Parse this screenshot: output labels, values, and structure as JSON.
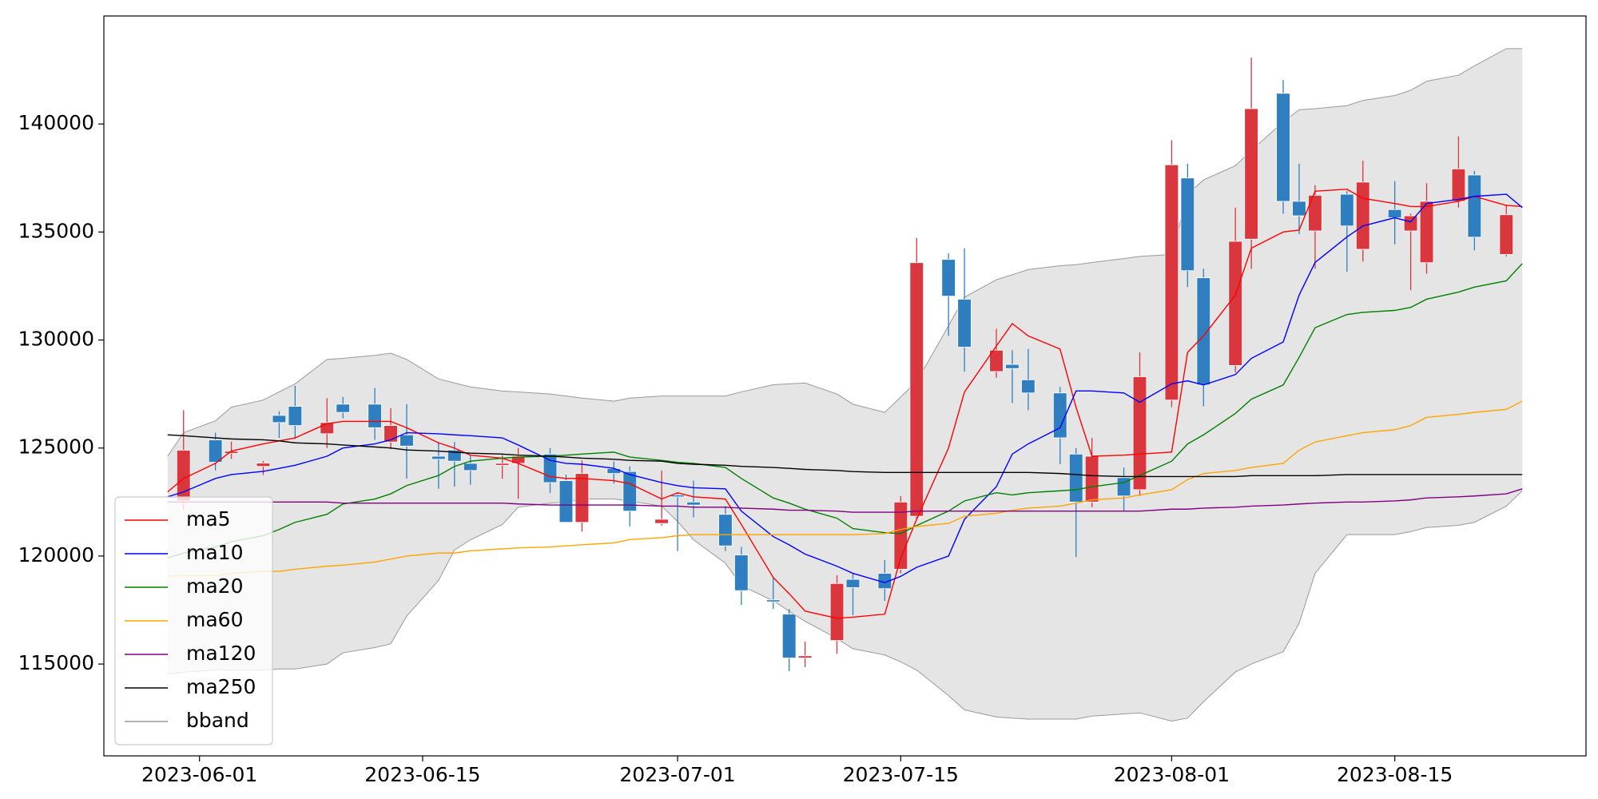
{
  "chart_data": {
    "type": "candlestick",
    "x": [
      "2023-05-30",
      "2023-05-31",
      "2023-06-02",
      "2023-06-03",
      "2023-06-05",
      "2023-06-06",
      "2023-06-07",
      "2023-06-09",
      "2023-06-10",
      "2023-06-12",
      "2023-06-13",
      "2023-06-14",
      "2023-06-16",
      "2023-06-17",
      "2023-06-18",
      "2023-06-20",
      "2023-06-21",
      "2023-06-23",
      "2023-06-24",
      "2023-06-25",
      "2023-06-27",
      "2023-06-28",
      "2023-06-30",
      "2023-07-01",
      "2023-07-02",
      "2023-07-04",
      "2023-07-05",
      "2023-07-07",
      "2023-07-08",
      "2023-07-09",
      "2023-07-11",
      "2023-07-12",
      "2023-07-14",
      "2023-07-15",
      "2023-07-16",
      "2023-07-18",
      "2023-07-19",
      "2023-07-21",
      "2023-07-22",
      "2023-07-23",
      "2023-07-25",
      "2023-07-26",
      "2023-07-27",
      "2023-07-29",
      "2023-07-30",
      "2023-08-01",
      "2023-08-02",
      "2023-08-03",
      "2023-08-05",
      "2023-08-06",
      "2023-08-08",
      "2023-08-09",
      "2023-08-10",
      "2023-08-12",
      "2023-08-13",
      "2023-08-15",
      "2023-08-16",
      "2023-08-17",
      "2023-08-19",
      "2023-08-20",
      "2023-08-22",
      "2023-08-23"
    ],
    "open": [
      null,
      122550,
      125380,
      124750,
      124150,
      126510,
      126930,
      125660,
      127030,
      127030,
      125280,
      125610,
      124620,
      124910,
      124290,
      124200,
      124290,
      124720,
      123490,
      121560,
      124050,
      123910,
      121510,
      122830,
      122500,
      121930,
      120050,
      117970,
      117310,
      115280,
      116090,
      118920,
      119200,
      119390,
      121840,
      133730,
      131890,
      128540,
      128870,
      128160,
      127550,
      124720,
      122500,
      123630,
      123070,
      127220,
      137500,
      132880,
      128820,
      134670,
      141420,
      136420,
      135050,
      136750,
      134200,
      136040,
      135050,
      133580,
      136420,
      137640,
      133960,
      null
    ],
    "high": [
      null,
      126750,
      125710,
      125300,
      124400,
      126700,
      127880,
      127310,
      127360,
      127780,
      126840,
      127030,
      125280,
      125280,
      124670,
      124670,
      125000,
      125000,
      123770,
      124430,
      124380,
      124150,
      123960,
      122920,
      123490,
      122310,
      120420,
      119010,
      117550,
      116040,
      119110,
      119200,
      119810,
      122780,
      134720,
      134010,
      134250,
      130520,
      129530,
      129580,
      127830,
      125000,
      125470,
      124100,
      129430,
      139250,
      138160,
      133300,
      136130,
      143070,
      142030,
      138160,
      137170,
      136890,
      138300,
      137360,
      135850,
      137260,
      139430,
      137830,
      136270,
      null
    ],
    "low": [
      null,
      122170,
      123960,
      124500,
      123750,
      125470,
      125420,
      125000,
      126370,
      125380,
      124950,
      123580,
      123110,
      123210,
      123300,
      123580,
      122640,
      122920,
      121560,
      121130,
      123350,
      121370,
      121410,
      120230,
      121790,
      120230,
      117740,
      117550,
      114670,
      114860,
      115470,
      117260,
      117920,
      119200,
      121700,
      130190,
      128540,
      128250,
      127080,
      126750,
      124250,
      119950,
      122260,
      122080,
      122780,
      126890,
      132450,
      126930,
      128490,
      133300,
      135850,
      134900,
      133300,
      133160,
      133630,
      134430,
      132310,
      133070,
      136130,
      134150,
      133870,
      null
    ],
    "close": [
      null,
      124900,
      124340,
      124850,
      124300,
      126180,
      126040,
      126180,
      126650,
      125940,
      126040,
      125090,
      124480,
      124390,
      123960,
      124290,
      124620,
      123400,
      121560,
      123820,
      123820,
      122080,
      121700,
      122740,
      122360,
      120470,
      118400,
      117880,
      115280,
      115380,
      118730,
      118540,
      118490,
      122500,
      133580,
      132030,
      129670,
      129530,
      128680,
      127550,
      125470,
      122500,
      124620,
      122780,
      128300,
      138110,
      133210,
      127920,
      134570,
      140710,
      136420,
      135750,
      136700,
      135280,
      137310,
      135660,
      135750,
      136420,
      137920,
      134760,
      135800,
      null
    ],
    "up_color": "#d9363e",
    "down_color": "#2f7fc0",
    "series": [
      {
        "name": "ma5",
        "color": "#ff0000",
        "values": [
          122970,
          123590,
          124290,
          124860,
          125190,
          125330,
          125470,
          126130,
          126230,
          126230,
          126230,
          125940,
          125240,
          125000,
          124670,
          124530,
          124290,
          123680,
          123590,
          123590,
          123490,
          123350,
          122640,
          122930,
          122740,
          122640,
          121460,
          119010,
          118260,
          117450,
          117120,
          117170,
          117310,
          119910,
          121700,
          125000,
          127590,
          129720,
          130760,
          130190,
          129580,
          126890,
          124620,
          124670,
          124720,
          124810,
          129430,
          130190,
          132080,
          134250,
          135000,
          135090,
          136890,
          136980,
          136560,
          136320,
          136180,
          136180,
          136420,
          136650,
          136230,
          136180
        ]
      },
      {
        "name": "ma10",
        "color": "#0000ff",
        "values": [
          122740,
          122970,
          123590,
          123770,
          123920,
          124060,
          124200,
          124620,
          125000,
          125190,
          125380,
          125710,
          125660,
          125610,
          125570,
          125470,
          125140,
          124430,
          124290,
          124250,
          124060,
          123770,
          123400,
          123260,
          123160,
          123110,
          122080,
          120900,
          120520,
          120090,
          119530,
          119200,
          118770,
          119060,
          119480,
          120000,
          121700,
          123210,
          124720,
          125190,
          125940,
          127640,
          127640,
          127550,
          127120,
          127970,
          128110,
          127920,
          128400,
          129150,
          129910,
          132080,
          133590,
          134770,
          135280,
          135660,
          135470,
          136320,
          136510,
          136650,
          136750,
          136130
        ]
      },
      {
        "name": "ma20",
        "color": "#008000",
        "values": [
          119910,
          120140,
          120420,
          120660,
          120940,
          121230,
          121560,
          121930,
          122410,
          122640,
          122880,
          123260,
          123730,
          124150,
          124390,
          124530,
          124580,
          124620,
          124670,
          124720,
          124810,
          124580,
          124430,
          124340,
          124290,
          124100,
          123590,
          122690,
          122450,
          122170,
          121750,
          121270,
          121080,
          121040,
          121410,
          122080,
          122550,
          122930,
          122830,
          122930,
          123020,
          123070,
          123210,
          123400,
          123730,
          124390,
          125190,
          125610,
          126600,
          127260,
          127920,
          129200,
          130570,
          131180,
          131280,
          131370,
          131510,
          131890,
          132220,
          132450,
          132740,
          133540
        ]
      },
      {
        "name": "ma60",
        "color": "#ffa500",
        "values": [
          119060,
          119100,
          119100,
          119200,
          119290,
          119290,
          119390,
          119530,
          119580,
          119720,
          119860,
          120000,
          120140,
          120140,
          120240,
          120330,
          120380,
          120420,
          120470,
          120520,
          120610,
          120760,
          120850,
          120940,
          120990,
          120990,
          120990,
          120990,
          120990,
          120990,
          120990,
          120990,
          121040,
          121230,
          121370,
          121510,
          121840,
          121980,
          122120,
          122220,
          122310,
          122450,
          122600,
          122690,
          122830,
          123070,
          123540,
          123820,
          123960,
          124100,
          124290,
          124900,
          125280,
          125570,
          125710,
          125850,
          126040,
          126420,
          126560,
          126650,
          126790,
          127170
        ]
      },
      {
        "name": "ma120",
        "color": "#800080",
        "values": [
          122500,
          122500,
          122500,
          122500,
          122500,
          122500,
          122500,
          122500,
          122450,
          122450,
          122450,
          122450,
          122450,
          122450,
          122450,
          122450,
          122410,
          122360,
          122360,
          122360,
          122360,
          122360,
          122310,
          122310,
          122260,
          122260,
          122220,
          122170,
          122120,
          122120,
          122080,
          122030,
          122030,
          122030,
          122080,
          122080,
          122080,
          122080,
          122080,
          122080,
          122080,
          122080,
          122080,
          122080,
          122080,
          122170,
          122170,
          122220,
          122260,
          122310,
          122360,
          122410,
          122450,
          122500,
          122500,
          122550,
          122600,
          122690,
          122740,
          122780,
          122880,
          123110
        ]
      },
      {
        "name": "ma250",
        "color": "#000000",
        "values": [
          125610,
          125570,
          125470,
          125420,
          125380,
          125330,
          125240,
          125190,
          125140,
          125050,
          125000,
          124910,
          124860,
          124810,
          124760,
          124720,
          124670,
          124620,
          124580,
          124530,
          124480,
          124430,
          124390,
          124290,
          124250,
          124200,
          124150,
          124100,
          124060,
          124010,
          123960,
          123910,
          123870,
          123870,
          123870,
          123870,
          123870,
          123870,
          123870,
          123870,
          123820,
          123770,
          123720,
          123680,
          123680,
          123680,
          123680,
          123680,
          123680,
          123720,
          123720,
          123720,
          123720,
          123770,
          123770,
          123770,
          123770,
          123770,
          123770,
          123770,
          123770,
          123770
        ]
      }
    ],
    "band": {
      "name": "bband",
      "color": "#e5e5e5",
      "edge_color": "#999999",
      "upper": [
        124620,
        125710,
        126260,
        126890,
        127220,
        127600,
        127970,
        129100,
        129150,
        129290,
        129390,
        129100,
        128200,
        128010,
        127830,
        127640,
        127600,
        127500,
        127410,
        127310,
        127170,
        127310,
        127410,
        127410,
        127410,
        127410,
        127600,
        127930,
        127970,
        128010,
        127500,
        127030,
        126650,
        127360,
        128070,
        130660,
        131980,
        132790,
        133020,
        133260,
        133440,
        133490,
        133590,
        133770,
        133870,
        133960,
        136750,
        137410,
        138070,
        138770,
        140100,
        140660,
        140710,
        140850,
        141090,
        141320,
        141560,
        141980,
        142260,
        142690,
        143490,
        143490
      ],
      "lower": [
        114530,
        114620,
        114720,
        114720,
        114720,
        114770,
        114770,
        115000,
        115520,
        115760,
        115940,
        117220,
        118870,
        120280,
        120750,
        121460,
        122260,
        122450,
        122500,
        122640,
        122640,
        122550,
        122310,
        121600,
        120750,
        119670,
        118630,
        117930,
        117450,
        116980,
        116180,
        115710,
        115420,
        115100,
        114720,
        113540,
        112880,
        112550,
        112500,
        112450,
        112450,
        112450,
        112590,
        112690,
        112740,
        112360,
        112500,
        113260,
        114630,
        115000,
        115570,
        116890,
        119200,
        120990,
        120990,
        120990,
        121130,
        121320,
        121420,
        121560,
        122310,
        123020
      ]
    },
    "xlim": [
      "2023-05-26",
      "2023-08-27"
    ],
    "xticks": [
      "2023-06-01",
      "2023-06-15",
      "2023-07-01",
      "2023-07-15",
      "2023-08-01",
      "2023-08-15"
    ],
    "ylim": [
      110750,
      145000
    ],
    "yticks": [
      115000,
      120000,
      125000,
      130000,
      135000,
      140000
    ],
    "legend": "lower left"
  }
}
